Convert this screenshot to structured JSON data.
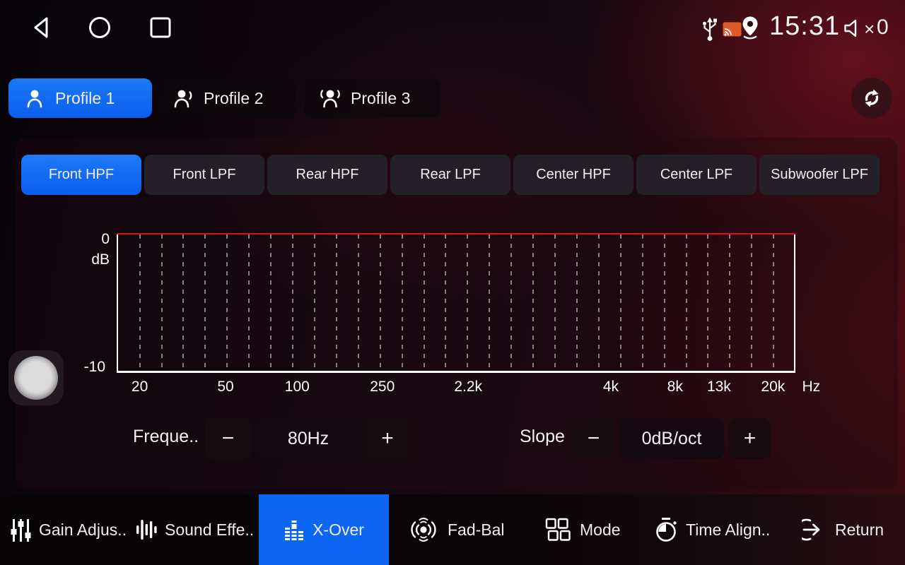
{
  "status_bar": {
    "time": "15:31",
    "volume_multiplier_symbol": "×",
    "volume_value": "0"
  },
  "profile_tabs": [
    {
      "label": "Profile 1",
      "active": true
    },
    {
      "label": "Profile 2",
      "active": false
    },
    {
      "label": "Profile 3",
      "active": false
    }
  ],
  "filter_tabs": [
    {
      "label": "Front HPF",
      "active": true
    },
    {
      "label": "Front LPF",
      "active": false
    },
    {
      "label": "Rear HPF",
      "active": false
    },
    {
      "label": "Rear LPF",
      "active": false
    },
    {
      "label": "Center HPF",
      "active": false
    },
    {
      "label": "Center LPF",
      "active": false
    },
    {
      "label": "Subwoofer LPF",
      "active": false
    }
  ],
  "chart_data": {
    "type": "line",
    "x_scale": "log",
    "x_unit": "Hz",
    "y_axis_label": "dB",
    "y_tick_labels": [
      "0",
      "-10"
    ],
    "ylim": [
      -10,
      0
    ],
    "x_ticks": [
      {
        "label": "20",
        "pos_pct": 3.2
      },
      {
        "label": "50",
        "pos_pct": 15.9
      },
      {
        "label": "100",
        "pos_pct": 26.5
      },
      {
        "label": "250",
        "pos_pct": 39.1
      },
      {
        "label": "2.2k",
        "pos_pct": 51.8
      },
      {
        "label": "4k",
        "pos_pct": 72.9
      },
      {
        "label": "8k",
        "pos_pct": 82.4
      },
      {
        "label": "13k",
        "pos_pct": 88.9
      },
      {
        "label": "20k",
        "pos_pct": 96.9
      }
    ],
    "gridline_count": 30,
    "gridline_first_pct": 3.2,
    "gridline_spacing_pct": 3.234,
    "series": [
      {
        "name": "Front HPF response",
        "color": "#cf1620",
        "shape": "flat",
        "value_db": 0
      }
    ],
    "legend": false,
    "grid": "dashed-vertical"
  },
  "controls": {
    "frequency": {
      "label": "Freque..",
      "minus": "−",
      "value": "80Hz",
      "plus": "+"
    },
    "slope": {
      "label": "Slope",
      "minus": "−",
      "value": "0dB/oct",
      "plus": "+"
    }
  },
  "bottom_nav": [
    {
      "label": "Gain Adjus..",
      "icon": "gain-sliders-icon",
      "active": false
    },
    {
      "label": "Sound Effe..",
      "icon": "sound-effect-icon",
      "active": false
    },
    {
      "label": "X-Over",
      "icon": "equalizer-icon",
      "active": true
    },
    {
      "label": "Fad-Bal",
      "icon": "fader-balance-icon",
      "active": false
    },
    {
      "label": "Mode",
      "icon": "mode-grid-icon",
      "active": false
    },
    {
      "label": "Time Align..",
      "icon": "stopwatch-icon",
      "active": false
    },
    {
      "label": "Return",
      "icon": "return-arrow-icon",
      "active": false
    }
  ],
  "colors": {
    "accent_blue": "#0d68f2",
    "chart_line_red": "#cf1620"
  }
}
